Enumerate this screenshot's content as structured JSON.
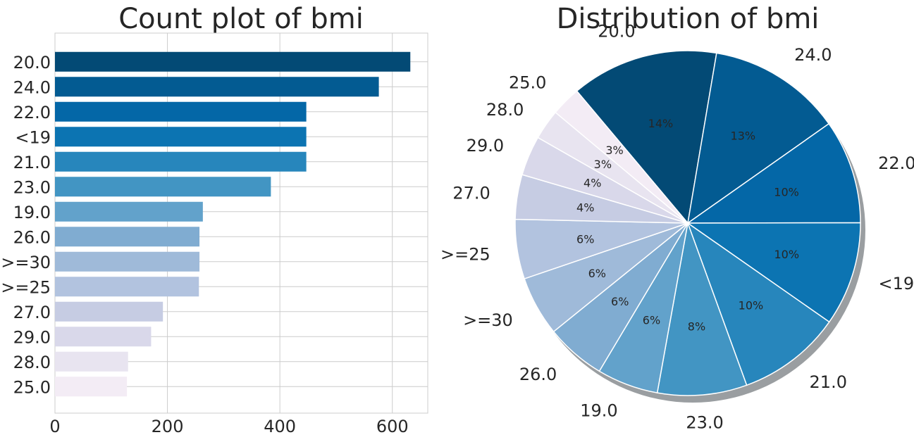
{
  "colors": {
    "palette": [
      "#034a75",
      "#035b92",
      "#0467a7",
      "#0c74b2",
      "#2786bc",
      "#4295c3",
      "#62a2cb",
      "#80acd1",
      "#9fbad9",
      "#b2c3df",
      "#c6cce3",
      "#d9d8ea",
      "#e8e4f0",
      "#f3ecf5"
    ],
    "grid": "#cccccc",
    "text": "#262626",
    "axis_frame": "#cccccc"
  },
  "chart_data": [
    {
      "type": "bar",
      "orientation": "horizontal",
      "title": "Count plot of bmi",
      "categories": [
        "20.0",
        "24.0",
        "22.0",
        "<19",
        "21.0",
        "23.0",
        "19.0",
        "26.0",
        ">=30",
        ">=25",
        "27.0",
        "29.0",
        "28.0",
        "25.0"
      ],
      "values": [
        632,
        576,
        447,
        447,
        447,
        384,
        263,
        257,
        257,
        256,
        192,
        171,
        130,
        128
      ],
      "xticks": [
        0,
        200,
        400,
        600
      ],
      "xlim": [
        0,
        663
      ],
      "xlabel": "",
      "ylabel": "",
      "grid": true
    },
    {
      "type": "pie",
      "title": "Distribution of bmi",
      "labels": [
        "20.0",
        "24.0",
        "22.0",
        "<19",
        "21.0",
        "23.0",
        "19.0",
        "26.0",
        ">=30",
        ">=25",
        "27.0",
        "29.0",
        "28.0",
        "25.0"
      ],
      "values": [
        632,
        576,
        447,
        447,
        447,
        384,
        263,
        257,
        257,
        256,
        192,
        171,
        130,
        128
      ],
      "percent_labels": [
        "14%",
        "13%",
        "10%",
        "10%",
        "10%",
        "8%",
        "6%",
        "6%",
        "6%",
        "6%",
        "4%",
        "4%",
        "3%",
        "3%"
      ],
      "start_angle_deg": 130,
      "direction": "clockwise",
      "shadow": true
    }
  ]
}
